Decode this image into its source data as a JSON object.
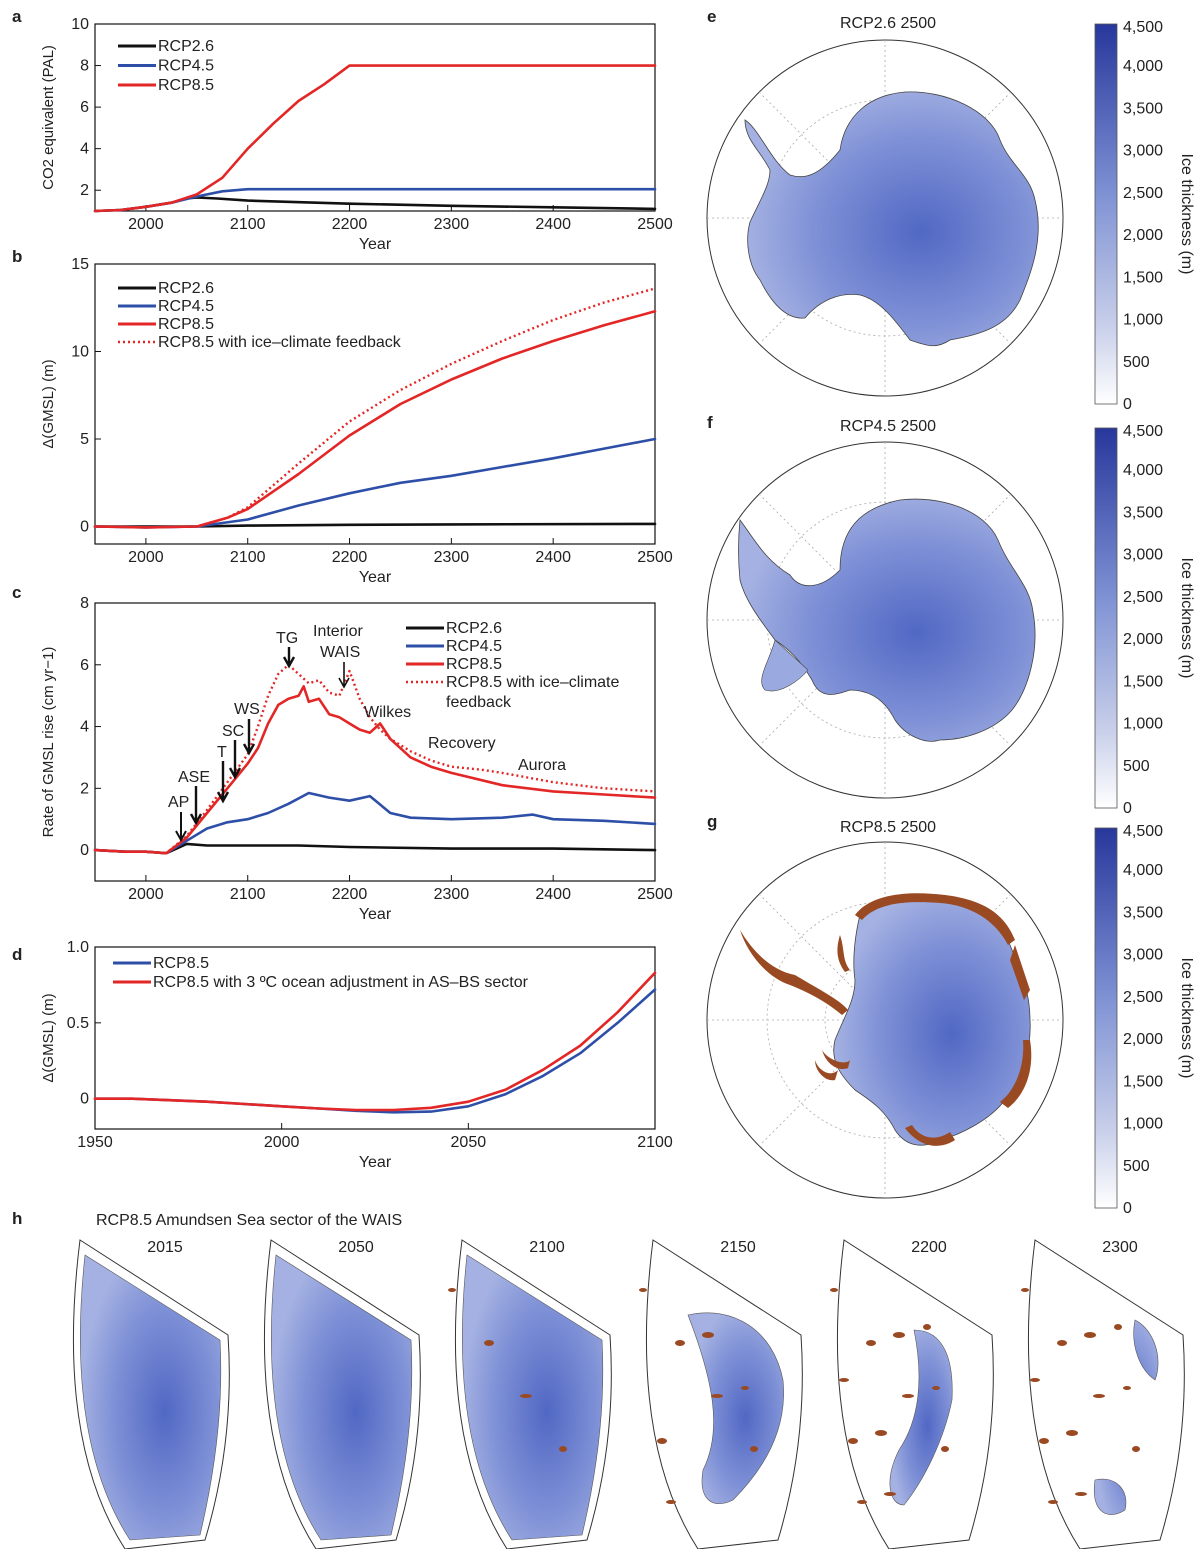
{
  "chart_data": [
    {
      "panel": "a",
      "type": "line",
      "xlabel": "Year",
      "ylabel": "CO2 equivalent (PAL)",
      "xlim": [
        1950,
        2500
      ],
      "ylim": [
        1,
        10
      ],
      "xticks": [
        2000,
        2100,
        2200,
        2300,
        2400,
        2500
      ],
      "yticks": [
        2,
        4,
        6,
        8,
        10
      ],
      "legend": "top-left",
      "series": [
        {
          "name": "RCP2.6",
          "color": "#111111",
          "x": [
            1950,
            1975,
            2000,
            2025,
            2040,
            2050,
            2070,
            2100,
            2200,
            2300,
            2400,
            2500
          ],
          "y": [
            1.0,
            1.05,
            1.2,
            1.4,
            1.6,
            1.65,
            1.6,
            1.5,
            1.35,
            1.25,
            1.18,
            1.1
          ]
        },
        {
          "name": "RCP4.5",
          "color": "#2e4fa8",
          "x": [
            1950,
            1975,
            2000,
            2025,
            2050,
            2075,
            2100,
            2150,
            2200,
            2500
          ],
          "y": [
            1.0,
            1.05,
            1.2,
            1.4,
            1.7,
            1.95,
            2.05,
            2.05,
            2.05,
            2.05
          ]
        },
        {
          "name": "RCP8.5",
          "color": "#e32626",
          "x": [
            1950,
            1975,
            2000,
            2025,
            2050,
            2075,
            2100,
            2125,
            2150,
            2175,
            2200,
            2500
          ],
          "y": [
            1.0,
            1.05,
            1.2,
            1.4,
            1.8,
            2.6,
            4.0,
            5.2,
            6.3,
            7.1,
            8.0,
            8.0
          ]
        }
      ]
    },
    {
      "panel": "b",
      "type": "line",
      "xlabel": "Year",
      "ylabel": "Δ(GMSL) (m)",
      "xlim": [
        1950,
        2500
      ],
      "ylim": [
        -1,
        15
      ],
      "xticks": [
        2000,
        2100,
        2200,
        2300,
        2400,
        2500
      ],
      "yticks": [
        0,
        5,
        10,
        15
      ],
      "legend": "top-left",
      "series": [
        {
          "name": "RCP2.6",
          "color": "#111111",
          "x": [
            1950,
            2000,
            2050,
            2100,
            2200,
            2300,
            2500
          ],
          "y": [
            0,
            0,
            0,
            0.05,
            0.1,
            0.12,
            0.15
          ]
        },
        {
          "name": "RCP4.5",
          "color": "#2e4fa8",
          "x": [
            1950,
            2000,
            2050,
            2100,
            2150,
            2200,
            2250,
            2300,
            2350,
            2400,
            2450,
            2500
          ],
          "y": [
            0,
            -0.05,
            0,
            0.4,
            1.2,
            1.9,
            2.5,
            2.9,
            3.4,
            3.9,
            4.45,
            5.0
          ]
        },
        {
          "name": "RCP8.5",
          "color": "#e32626",
          "x": [
            1950,
            2000,
            2050,
            2080,
            2100,
            2150,
            2200,
            2250,
            2300,
            2350,
            2400,
            2450,
            2500
          ],
          "y": [
            0,
            -0.05,
            0,
            0.5,
            1.0,
            3.0,
            5.2,
            7.0,
            8.4,
            9.6,
            10.6,
            11.5,
            12.3
          ]
        },
        {
          "name": "RCP8.5 with ice–climate feedback",
          "color": "#e32626",
          "dashed": true,
          "x": [
            1950,
            2000,
            2050,
            2080,
            2100,
            2150,
            2200,
            2250,
            2300,
            2350,
            2400,
            2450,
            2500
          ],
          "y": [
            0,
            -0.05,
            0,
            0.5,
            1.1,
            3.6,
            6.0,
            7.8,
            9.3,
            10.6,
            11.8,
            12.8,
            13.6
          ]
        }
      ]
    },
    {
      "panel": "c",
      "type": "line",
      "xlabel": "Year",
      "ylabel": "Rate of GMSL rise (cm yr−1)",
      "xlim": [
        1950,
        2500
      ],
      "ylim": [
        -1,
        8
      ],
      "xticks": [
        2000,
        2100,
        2200,
        2300,
        2400,
        2500
      ],
      "yticks": [
        0,
        2,
        4,
        6,
        8
      ],
      "legend": "top-right",
      "series": [
        {
          "name": "RCP2.6",
          "color": "#111111",
          "x": [
            1950,
            1980,
            2000,
            2020,
            2030,
            2040,
            2060,
            2100,
            2150,
            2200,
            2300,
            2400,
            2500
          ],
          "y": [
            0,
            -0.05,
            -0.05,
            -0.1,
            0.05,
            0.2,
            0.15,
            0.15,
            0.15,
            0.1,
            0.05,
            0.05,
            0.0
          ]
        },
        {
          "name": "RCP4.5",
          "color": "#2e4fa8",
          "x": [
            1950,
            1980,
            2000,
            2020,
            2040,
            2060,
            2080,
            2100,
            2120,
            2140,
            2160,
            2180,
            2200,
            2220,
            2240,
            2260,
            2300,
            2350,
            2380,
            2400,
            2450,
            2500
          ],
          "y": [
            0,
            -0.05,
            -0.05,
            -0.1,
            0.3,
            0.7,
            0.9,
            1.0,
            1.2,
            1.5,
            1.85,
            1.7,
            1.6,
            1.75,
            1.2,
            1.05,
            1.0,
            1.05,
            1.15,
            1.0,
            0.95,
            0.85
          ]
        },
        {
          "name": "RCP8.5",
          "color": "#e32626",
          "x": [
            1950,
            1980,
            2000,
            2020,
            2040,
            2060,
            2080,
            2100,
            2110,
            2120,
            2130,
            2140,
            2150,
            2155,
            2160,
            2170,
            2180,
            2190,
            2200,
            2210,
            2220,
            2230,
            2240,
            2260,
            2280,
            2300,
            2350,
            2400,
            2450,
            2500
          ],
          "y": [
            0,
            -0.05,
            -0.05,
            -0.1,
            0.4,
            1.2,
            2.0,
            2.8,
            3.3,
            4.1,
            4.7,
            4.9,
            5.0,
            5.3,
            4.8,
            4.9,
            4.4,
            4.3,
            4.1,
            3.9,
            3.8,
            4.1,
            3.6,
            3.0,
            2.7,
            2.5,
            2.1,
            1.9,
            1.8,
            1.7
          ]
        },
        {
          "name": "RCP8.5 with ice–climate feedback",
          "color": "#e32626",
          "dashed": true,
          "x": [
            1950,
            1980,
            2000,
            2020,
            2040,
            2060,
            2080,
            2100,
            2110,
            2120,
            2130,
            2140,
            2150,
            2160,
            2170,
            2180,
            2190,
            2200,
            2210,
            2220,
            2230,
            2240,
            2260,
            2280,
            2300,
            2330,
            2350,
            2400,
            2450,
            2500
          ],
          "y": [
            0,
            -0.05,
            -0.05,
            -0.1,
            0.45,
            1.3,
            2.2,
            3.1,
            4.0,
            5.0,
            5.7,
            6.0,
            5.7,
            5.4,
            5.5,
            5.1,
            5.0,
            5.8,
            4.9,
            4.3,
            3.9,
            3.6,
            3.2,
            2.9,
            2.7,
            2.6,
            2.5,
            2.2,
            2.0,
            1.9
          ]
        }
      ],
      "annotations": [
        "AP",
        "ASE",
        "T",
        "SC",
        "WS",
        "TG",
        "Interior",
        "WAIS",
        "Wilkes",
        "Recovery",
        "Aurora"
      ]
    },
    {
      "panel": "d",
      "type": "line",
      "xlabel": "Year",
      "ylabel": "Δ(GMSL) (m)",
      "xlim": [
        1950,
        2100
      ],
      "ylim": [
        -0.2,
        1.0
      ],
      "xticks": [
        1950,
        2000,
        2050,
        2100
      ],
      "yticks": [
        0,
        0.5,
        1.0
      ],
      "legend": "top-left",
      "series": [
        {
          "name": "RCP8.5",
          "color": "#2e4fa8",
          "x": [
            1950,
            1960,
            1970,
            1980,
            1990,
            2000,
            2010,
            2020,
            2030,
            2040,
            2050,
            2060,
            2070,
            2080,
            2090,
            2100
          ],
          "y": [
            0,
            0,
            -0.01,
            -0.02,
            -0.035,
            -0.05,
            -0.065,
            -0.08,
            -0.09,
            -0.085,
            -0.05,
            0.03,
            0.15,
            0.3,
            0.5,
            0.72
          ]
        },
        {
          "name": "RCP8.5 with 3 ºC ocean adjustment in AS–BS sector",
          "color": "#e32626",
          "x": [
            1950,
            1960,
            1970,
            1980,
            1990,
            2000,
            2010,
            2020,
            2030,
            2040,
            2050,
            2060,
            2070,
            2080,
            2090,
            2100
          ],
          "y": [
            0,
            0,
            -0.01,
            -0.02,
            -0.035,
            -0.05,
            -0.065,
            -0.075,
            -0.075,
            -0.06,
            -0.02,
            0.06,
            0.19,
            0.35,
            0.57,
            0.83
          ]
        }
      ]
    }
  ],
  "panels": {
    "a": "a",
    "b": "b",
    "c": "c",
    "d": "d",
    "e": "e",
    "f": "f",
    "g": "g",
    "h": "h"
  },
  "maps": {
    "titles": [
      "RCP2.6 2500",
      "RCP4.5 2500",
      "RCP8.5 2500"
    ],
    "colorbar": {
      "label": "Ice thickness (m)",
      "ticks": [
        "4,500",
        "4,000",
        "3,500",
        "3,000",
        "2,500",
        "2,000",
        "1,500",
        "1,000",
        "500",
        "0"
      ],
      "color_low": "#ffffff",
      "color_high": "#27379c",
      "retreat_color": "#9a4a22"
    }
  },
  "sector": {
    "title": "RCP8.5 Amundsen Sea sector of the WAIS",
    "years": [
      "2015",
      "2050",
      "2100",
      "2150",
      "2200",
      "2300"
    ]
  }
}
